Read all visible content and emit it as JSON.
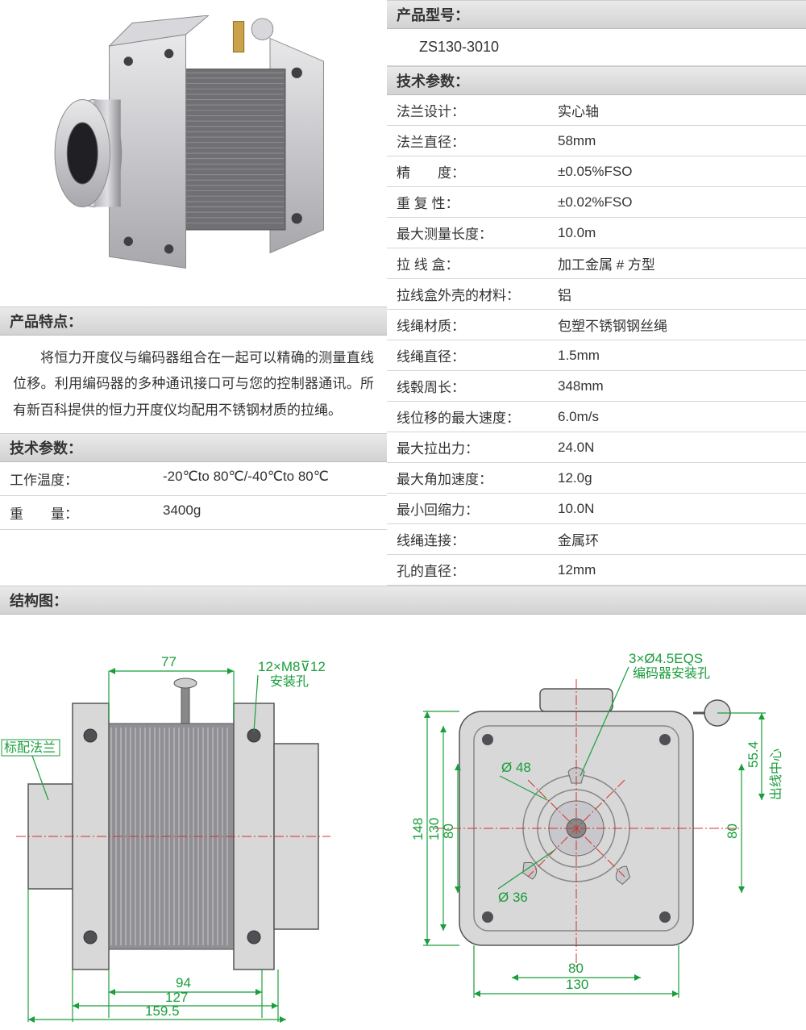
{
  "headers": {
    "model": "产品型号：",
    "tech_specs": "技术参数：",
    "features": "产品特点：",
    "structure": "结构图："
  },
  "model_number": "ZS130-3010",
  "features_text": "将恒力开度仪与编码器组合在一起可以精确的测量直线位移。利用编码器的多种通讯接口可与您的控制器通讯。所有新百科提供的恒力开度仪均配用不锈钢材质的拉绳。",
  "left_specs": [
    {
      "label": "工作温度：",
      "value": "-20℃to 80℃/-40℃to 80℃"
    },
    {
      "label": "重　　量：",
      "value": "3400g"
    }
  ],
  "right_specs": [
    {
      "label": "法兰设计：",
      "value": "实心轴"
    },
    {
      "label": "法兰直径：",
      "value": "58mm"
    },
    {
      "label": "精　　度：",
      "value": "±0.05%FSO"
    },
    {
      "label": "重 复 性：",
      "value": "±0.02%FSO"
    },
    {
      "label": "最大测量长度：",
      "value": "10.0m"
    },
    {
      "label": "拉 线 盒：",
      "value": "加工金属 # 方型"
    },
    {
      "label": "拉线盒外壳的材料：",
      "value": "铝"
    },
    {
      "label": "线绳材质：",
      "value": "包塑不锈钢钢丝绳"
    },
    {
      "label": "线绳直径：",
      "value": "1.5mm"
    },
    {
      "label": "线毂周长：",
      "value": "348mm"
    },
    {
      "label": "线位移的最大速度：",
      "value": "6.0m/s"
    },
    {
      "label": "最大拉出力：",
      "value": "24.0N"
    },
    {
      "label": "最大角加速度：",
      "value": "12.0g"
    },
    {
      "label": "最小回缩力：",
      "value": "10.0N"
    },
    {
      "label": "线绳连接：",
      "value": "金属环"
    },
    {
      "label": "孔的直径：",
      "value": "12mm"
    }
  ],
  "diagram": {
    "colors": {
      "dim": "#1a9e3c",
      "center": "#d4302a",
      "part_fill": "#d8d8d8",
      "part_stroke": "#555",
      "part_dark": "#888"
    },
    "left_view": {
      "labels": {
        "flange": "标配法兰",
        "mount_holes": "12×M8⊽12",
        "mount_holes_sub": "安装孔"
      },
      "dims": [
        "77",
        "94",
        "127",
        "159.5"
      ]
    },
    "right_view": {
      "labels": {
        "encoder_holes": "3×Ø4.5EQS",
        "encoder_holes_sub": "编码器安装孔",
        "outlet": "出线中心"
      },
      "dims": [
        "148",
        "130",
        "80",
        "80",
        "130",
        "55.4",
        "80",
        "Ø 48",
        "Ø 36"
      ]
    }
  }
}
